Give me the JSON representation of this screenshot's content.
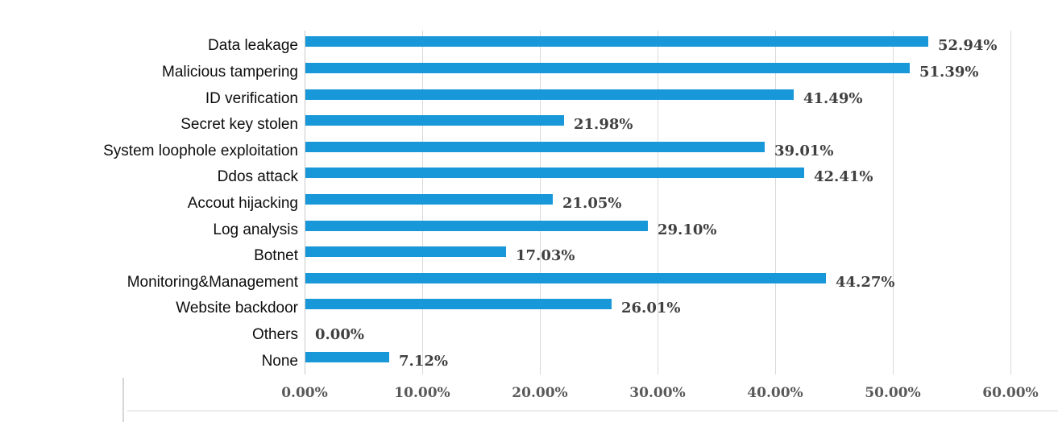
{
  "colors": {
    "bar": "#1898d8",
    "gridline": "#d9d9d9",
    "axis_line": "#c9c9c9",
    "tick_text": "#595959",
    "data_label_text": "#404040",
    "category_text": "#0d0d0d"
  },
  "chart_data": {
    "type": "bar",
    "orientation": "horizontal",
    "title": "",
    "xlabel": "",
    "ylabel": "",
    "categories": [
      "Data leakage",
      "Malicious tampering",
      "ID verification",
      "Secret key stolen",
      "System loophole exploitation",
      "Ddos attack",
      "Accout hijacking",
      "Log analysis",
      "Botnet",
      "Monitoring&Management",
      "Website backdoor",
      "Others",
      "None"
    ],
    "values": [
      52.94,
      51.39,
      41.49,
      21.98,
      39.01,
      42.41,
      21.05,
      29.1,
      17.03,
      44.27,
      26.01,
      0.0,
      7.12
    ],
    "value_labels": [
      "52.94%",
      "51.39%",
      "41.49%",
      "21.98%",
      "39.01%",
      "42.41%",
      "21.05%",
      "29.10%",
      "17.03%",
      "44.27%",
      "26.01%",
      "0.00%",
      "7.12%"
    ],
    "x_ticks": [
      "0.00%",
      "10.00%",
      "20.00%",
      "30.00%",
      "40.00%",
      "50.00%",
      "60.00%"
    ],
    "xlim": [
      0,
      60
    ],
    "grid": true,
    "legend": false
  }
}
